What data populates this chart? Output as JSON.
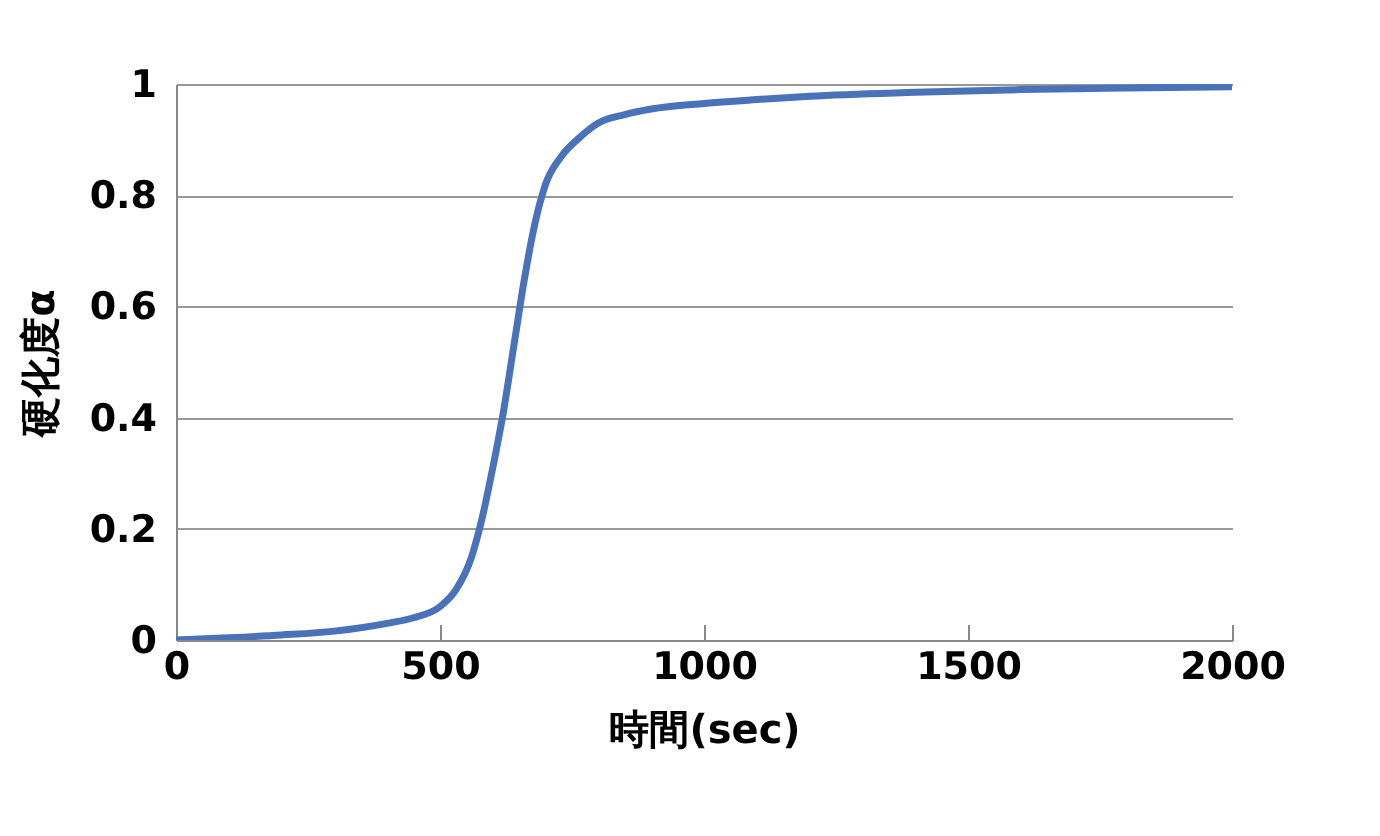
{
  "chart_data": {
    "type": "line",
    "xlabel": "時間(sec)",
    "ylabel": "硬化度α",
    "x": [
      0,
      100,
      200,
      300,
      400,
      450,
      500,
      530,
      560,
      580,
      600,
      620,
      640,
      660,
      680,
      700,
      730,
      760,
      800,
      850,
      900,
      1000,
      1100,
      1200,
      1400,
      1600,
      1800,
      2000
    ],
    "series": [
      {
        "color": "#4a72b8",
        "values": [
          0,
          0.004,
          0.009,
          0.016,
          0.03,
          0.04,
          0.06,
          0.09,
          0.15,
          0.22,
          0.31,
          0.41,
          0.53,
          0.65,
          0.75,
          0.82,
          0.87,
          0.9,
          0.93,
          0.945,
          0.955,
          0.965,
          0.972,
          0.978,
          0.985,
          0.99,
          0.993,
          0.995
        ]
      }
    ],
    "xlim": [
      0,
      2000
    ],
    "xticks": [
      0,
      500,
      1000,
      1500,
      2000
    ],
    "ylim": [
      0,
      1
    ],
    "yticks": [
      0,
      0.2,
      0.4,
      0.6,
      0.8,
      1
    ],
    "grid": "y",
    "legend": false,
    "marker": "none",
    "line_style": "solid"
  }
}
